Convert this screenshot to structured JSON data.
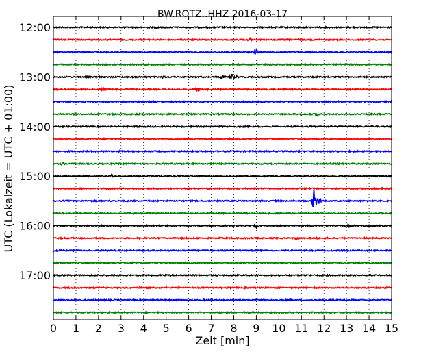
{
  "chart_data": {
    "type": "line",
    "title": "BW.ROTZ..HHZ 2016-03-17",
    "xlabel": "Zeit  [min]",
    "ylabel": "UTC (Lokalzeit = UTC + 01:00)",
    "xlim": [
      0,
      15
    ],
    "x_ticks": [
      "0",
      "1",
      "2",
      "3",
      "4",
      "5",
      "6",
      "7",
      "8",
      "9",
      "10",
      "11",
      "12",
      "13",
      "14",
      "15"
    ],
    "y_ticks": [
      "12:00",
      "13:00",
      "14:00",
      "15:00",
      "16:00",
      "17:00"
    ],
    "grid": true,
    "colors": [
      "#000000",
      "#ff0000",
      "#0000ff",
      "#008000"
    ],
    "rows_per_hour": 4,
    "series": [
      {
        "start": "12:00",
        "color": "#000000",
        "events": [
          {
            "min": 4.6,
            "amp": 2
          }
        ]
      },
      {
        "start": "12:15",
        "color": "#ff0000",
        "events": [
          {
            "min": 8.7,
            "amp": 3
          },
          {
            "min": 10.9,
            "amp": 2
          }
        ]
      },
      {
        "start": "12:30",
        "color": "#0000ff",
        "events": [
          {
            "min": 8.2,
            "amp": 2
          },
          {
            "min": 9.0,
            "amp": 4
          }
        ]
      },
      {
        "start": "12:45",
        "color": "#008000",
        "events": []
      },
      {
        "start": "13:00",
        "color": "#000000",
        "events": [
          {
            "min": 4.9,
            "amp": 3
          },
          {
            "min": 7.5,
            "amp": 4
          },
          {
            "min": 7.9,
            "amp": 5
          },
          {
            "min": 8.1,
            "amp": 3
          }
        ]
      },
      {
        "start": "13:15",
        "color": "#ff0000",
        "events": [
          {
            "min": 2.2,
            "amp": 3
          },
          {
            "min": 6.4,
            "amp": 4
          }
        ]
      },
      {
        "start": "13:30",
        "color": "#0000ff",
        "events": []
      },
      {
        "start": "13:45",
        "color": "#008000",
        "events": [
          {
            "min": 11.7,
            "amp": 3
          }
        ]
      },
      {
        "start": "14:00",
        "color": "#000000",
        "events": [
          {
            "min": 4.5,
            "amp": 2
          }
        ]
      },
      {
        "start": "14:15",
        "color": "#ff0000",
        "events": [
          {
            "min": 4.4,
            "amp": 2
          }
        ]
      },
      {
        "start": "14:30",
        "color": "#0000ff",
        "events": [
          {
            "min": 13.3,
            "amp": 2
          }
        ]
      },
      {
        "start": "14:45",
        "color": "#008000",
        "events": [
          {
            "min": 0.4,
            "amp": 3
          }
        ]
      },
      {
        "start": "15:00",
        "color": "#000000",
        "events": [
          {
            "min": 2.6,
            "amp": 3
          }
        ]
      },
      {
        "start": "15:15",
        "color": "#ff0000",
        "events": [
          {
            "min": 2.5,
            "amp": 2
          }
        ]
      },
      {
        "start": "15:30",
        "color": "#0000ff",
        "events": [
          {
            "min": 11.58,
            "amp": 28,
            "big": true
          },
          {
            "min": 11.7,
            "amp": 10
          }
        ]
      },
      {
        "start": "15:45",
        "color": "#008000",
        "events": []
      },
      {
        "start": "16:00",
        "color": "#000000",
        "events": [
          {
            "min": 9.0,
            "amp": 3
          },
          {
            "min": 13.1,
            "amp": 2
          }
        ]
      },
      {
        "start": "16:15",
        "color": "#ff0000",
        "events": [
          {
            "min": 10.8,
            "amp": 3
          }
        ]
      },
      {
        "start": "16:30",
        "color": "#0000ff",
        "events": [
          {
            "min": 0.1,
            "amp": 3
          }
        ]
      },
      {
        "start": "16:45",
        "color": "#008000",
        "events": []
      },
      {
        "start": "17:00",
        "color": "#000000",
        "events": []
      },
      {
        "start": "17:15",
        "color": "#ff0000",
        "events": []
      },
      {
        "start": "17:30",
        "color": "#0000ff",
        "events": []
      },
      {
        "start": "17:45",
        "color": "#008000",
        "events": []
      }
    ]
  }
}
